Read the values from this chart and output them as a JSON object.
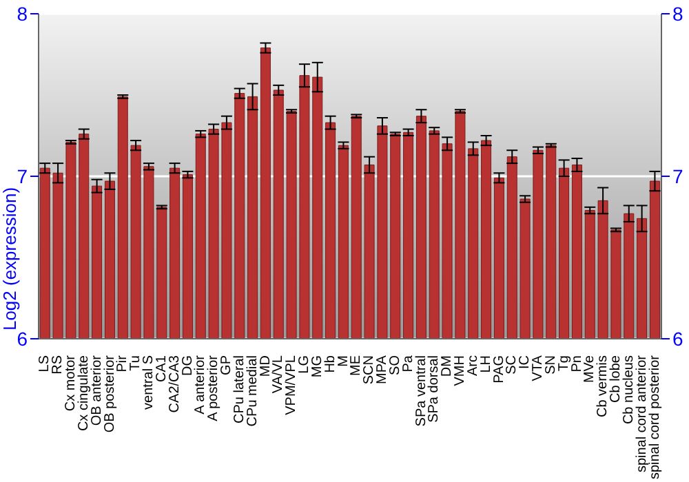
{
  "chart_data": {
    "type": "bar",
    "ylabel": "Log2 (expression)",
    "categories": [
      "LS",
      "RS",
      "Cx motor",
      "Cx cingulate",
      "OB anterior",
      "OB posterior",
      "Pir",
      "Tu",
      "ventral S",
      "CA1",
      "CA2/CA3",
      "DG",
      "A anterior",
      "A posterior",
      "GP",
      "CPu lateral",
      "CPu medial",
      "MD",
      "VA/VL",
      "VPM/VPL",
      "LG",
      "MG",
      "Hb",
      "M",
      "ME",
      "SCN",
      "MPA",
      "SO",
      "Pa",
      "SPa ventral",
      "SPa dorsal",
      "DM",
      "VMH",
      "Arc",
      "LH",
      "PAG",
      "SC",
      "IC",
      "VTA",
      "SN",
      "Tg",
      "Pn",
      "MVe",
      "Cb vermis",
      "Cb lobe",
      "Cb nucleus",
      "spinal cord anterior",
      "spinal cord posterior"
    ],
    "values": [
      7.05,
      7.02,
      7.21,
      7.26,
      6.94,
      6.97,
      7.49,
      7.19,
      7.06,
      6.81,
      7.05,
      7.01,
      7.26,
      7.29,
      7.33,
      7.51,
      7.49,
      7.79,
      7.53,
      7.4,
      7.62,
      7.61,
      7.33,
      7.19,
      7.37,
      7.07,
      7.31,
      7.26,
      7.27,
      7.37,
      7.28,
      7.2,
      7.4,
      7.17,
      7.22,
      6.99,
      7.12,
      6.86,
      7.16,
      7.19,
      7.05,
      7.07,
      6.79,
      6.85,
      6.67,
      6.77,
      6.74,
      6.97
    ],
    "errors": [
      0.03,
      0.06,
      0.01,
      0.03,
      0.04,
      0.05,
      0.01,
      0.03,
      0.02,
      0.01,
      0.03,
      0.02,
      0.02,
      0.03,
      0.04,
      0.03,
      0.08,
      0.03,
      0.03,
      0.01,
      0.07,
      0.09,
      0.04,
      0.02,
      0.01,
      0.05,
      0.05,
      0.01,
      0.02,
      0.04,
      0.02,
      0.04,
      0.01,
      0.04,
      0.03,
      0.03,
      0.04,
      0.02,
      0.02,
      0.01,
      0.05,
      0.04,
      0.02,
      0.08,
      0.01,
      0.05,
      0.08,
      0.06
    ],
    "color": "#b83232",
    "ylim": [
      6,
      8
    ],
    "yticks": [
      6,
      7,
      8
    ],
    "y2lim": [
      6,
      8
    ],
    "y2ticks": [
      6,
      7,
      8
    ],
    "grid": "y"
  }
}
